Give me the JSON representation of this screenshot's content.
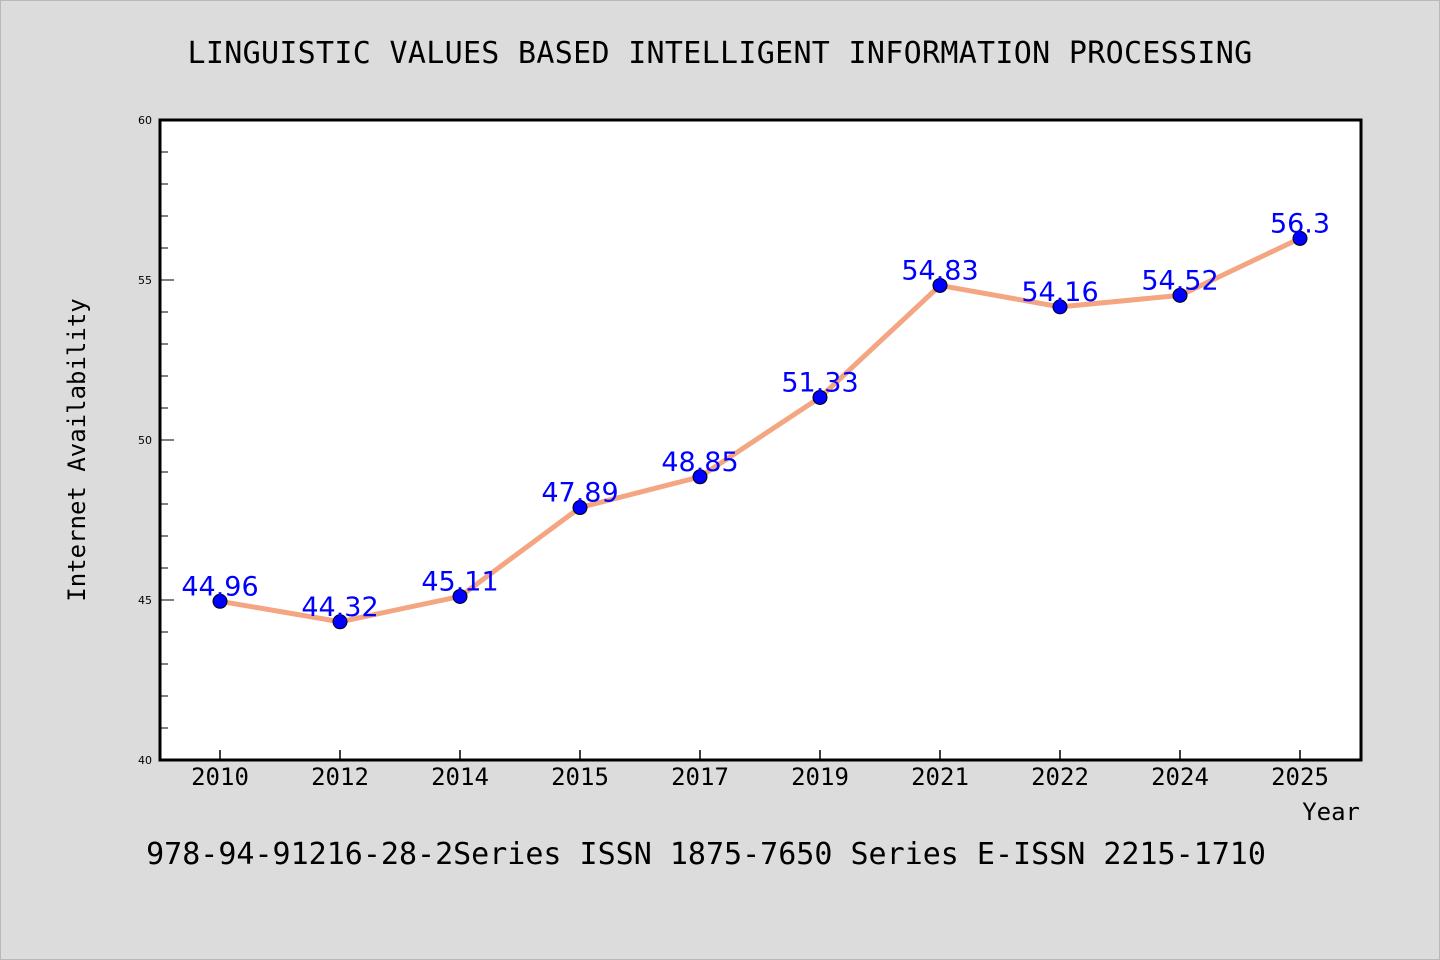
{
  "chart_data": {
    "type": "line",
    "title": "LINGUISTIC VALUES BASED INTELLIGENT INFORMATION PROCESSING",
    "footer": "978-94-91216-28-2Series ISSN 1875-7650 Series E-ISSN 2215-1710",
    "xlabel": "Year",
    "ylabel": "Internet Availability",
    "categories": [
      "2010",
      "2012",
      "2014",
      "2015",
      "2017",
      "2019",
      "2021",
      "2022",
      "2024",
      "2025"
    ],
    "series": [
      {
        "values": [
          44.96,
          44.32,
          45.11,
          47.89,
          48.85,
          51.33,
          54.83,
          54.16,
          54.52,
          56.3
        ],
        "labels": [
          "44.96",
          "44.32",
          "45.11",
          "47.89",
          "48.85",
          "51.33",
          "54.83",
          "54.16",
          "54.52",
          "56.3"
        ]
      }
    ],
    "ylim": [
      40,
      60
    ],
    "y_major_ticks": [
      40,
      45,
      50,
      55,
      60
    ],
    "y_minor_step": 1,
    "grid": false,
    "colors": {
      "line": "#f4a582",
      "marker": "#0000ff",
      "label": "#0000ff",
      "axes": "#000000",
      "background": "#dcdcdc",
      "plot_background": "#ffffff"
    }
  }
}
